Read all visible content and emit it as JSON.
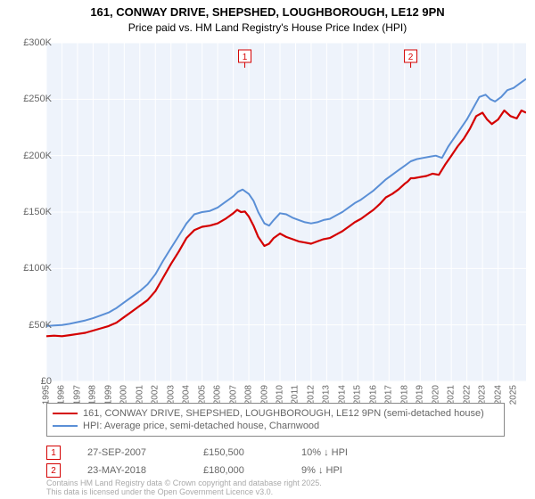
{
  "title": "161, CONWAY DRIVE, SHEPSHED, LOUGHBOROUGH, LE12 9PN",
  "subtitle": "Price paid vs. HM Land Registry's House Price Index (HPI)",
  "chart": {
    "type": "line",
    "background_color": "#eef3fb",
    "grid_color": "#ffffff",
    "axis_color": "#666666",
    "xlim": [
      1995,
      2025.8
    ],
    "ylim": [
      0,
      300000
    ],
    "yticks": [
      0,
      50000,
      100000,
      150000,
      200000,
      250000,
      300000
    ],
    "ytick_labels": [
      "£0",
      "£50K",
      "£100K",
      "£150K",
      "£200K",
      "£250K",
      "£300K"
    ],
    "xticks": [
      1995,
      1996,
      1997,
      1998,
      1999,
      2000,
      2001,
      2002,
      2003,
      2004,
      2005,
      2006,
      2007,
      2008,
      2009,
      2010,
      2011,
      2012,
      2013,
      2014,
      2015,
      2016,
      2017,
      2018,
      2019,
      2020,
      2021,
      2022,
      2023,
      2024,
      2025
    ],
    "series": [
      {
        "name": "price_paid",
        "color": "#d40000",
        "width": 2.2,
        "points": [
          [
            1995,
            40000
          ],
          [
            1995.5,
            40500
          ],
          [
            1996,
            40000
          ],
          [
            1996.5,
            41000
          ],
          [
            1997,
            42000
          ],
          [
            1997.5,
            43000
          ],
          [
            1998,
            45000
          ],
          [
            1998.5,
            47000
          ],
          [
            1999,
            49000
          ],
          [
            1999.5,
            52000
          ],
          [
            2000,
            57000
          ],
          [
            2000.5,
            62000
          ],
          [
            2001,
            67000
          ],
          [
            2001.5,
            72000
          ],
          [
            2002,
            80000
          ],
          [
            2002.5,
            92000
          ],
          [
            2003,
            104000
          ],
          [
            2003.5,
            115000
          ],
          [
            2004,
            127000
          ],
          [
            2004.5,
            134000
          ],
          [
            2005,
            137000
          ],
          [
            2005.5,
            138000
          ],
          [
            2006,
            140000
          ],
          [
            2006.5,
            144000
          ],
          [
            2007,
            149000
          ],
          [
            2007.25,
            152000
          ],
          [
            2007.5,
            150000
          ],
          [
            2007.75,
            150500
          ],
          [
            2008,
            146000
          ],
          [
            2008.3,
            138000
          ],
          [
            2008.6,
            128000
          ],
          [
            2009,
            120000
          ],
          [
            2009.3,
            122000
          ],
          [
            2009.6,
            127000
          ],
          [
            2010,
            131000
          ],
          [
            2010.4,
            128000
          ],
          [
            2010.8,
            126000
          ],
          [
            2011.2,
            124000
          ],
          [
            2011.6,
            123000
          ],
          [
            2012,
            122000
          ],
          [
            2012.4,
            124000
          ],
          [
            2012.8,
            126000
          ],
          [
            2013.2,
            127000
          ],
          [
            2013.6,
            130000
          ],
          [
            2014,
            133000
          ],
          [
            2014.4,
            137000
          ],
          [
            2014.8,
            141000
          ],
          [
            2015.2,
            144000
          ],
          [
            2015.6,
            148000
          ],
          [
            2016,
            152000
          ],
          [
            2016.4,
            157000
          ],
          [
            2016.8,
            163000
          ],
          [
            2017.2,
            166000
          ],
          [
            2017.6,
            170000
          ],
          [
            2018,
            175000
          ],
          [
            2018.2,
            177000
          ],
          [
            2018.4,
            180000
          ],
          [
            2018.6,
            180000
          ],
          [
            2019,
            181000
          ],
          [
            2019.4,
            182000
          ],
          [
            2019.8,
            184000
          ],
          [
            2020.2,
            183000
          ],
          [
            2020.6,
            192000
          ],
          [
            2021,
            200000
          ],
          [
            2021.4,
            208000
          ],
          [
            2021.8,
            215000
          ],
          [
            2022.2,
            224000
          ],
          [
            2022.6,
            235000
          ],
          [
            2023,
            238000
          ],
          [
            2023.3,
            232000
          ],
          [
            2023.6,
            228000
          ],
          [
            2024,
            232000
          ],
          [
            2024.4,
            240000
          ],
          [
            2024.8,
            235000
          ],
          [
            2025.2,
            233000
          ],
          [
            2025.5,
            240000
          ],
          [
            2025.8,
            238000
          ]
        ]
      },
      {
        "name": "hpi",
        "color": "#5a8fd6",
        "width": 2,
        "points": [
          [
            1995,
            49000
          ],
          [
            1995.5,
            49500
          ],
          [
            1996,
            50000
          ],
          [
            1996.5,
            51000
          ],
          [
            1997,
            52500
          ],
          [
            1997.5,
            54000
          ],
          [
            1998,
            56000
          ],
          [
            1998.5,
            58500
          ],
          [
            1999,
            61000
          ],
          [
            1999.5,
            65000
          ],
          [
            2000,
            70000
          ],
          [
            2000.5,
            75000
          ],
          [
            2001,
            80000
          ],
          [
            2001.5,
            86000
          ],
          [
            2002,
            95000
          ],
          [
            2002.5,
            107000
          ],
          [
            2003,
            118000
          ],
          [
            2003.5,
            129000
          ],
          [
            2004,
            140000
          ],
          [
            2004.5,
            148000
          ],
          [
            2005,
            150000
          ],
          [
            2005.5,
            151000
          ],
          [
            2006,
            154000
          ],
          [
            2006.5,
            159000
          ],
          [
            2007,
            164000
          ],
          [
            2007.3,
            168000
          ],
          [
            2007.6,
            170000
          ],
          [
            2008,
            166000
          ],
          [
            2008.3,
            160000
          ],
          [
            2008.6,
            150000
          ],
          [
            2009,
            140000
          ],
          [
            2009.3,
            138000
          ],
          [
            2009.6,
            143000
          ],
          [
            2010,
            149000
          ],
          [
            2010.4,
            148000
          ],
          [
            2010.8,
            145000
          ],
          [
            2011.2,
            143000
          ],
          [
            2011.6,
            141000
          ],
          [
            2012,
            140000
          ],
          [
            2012.4,
            141000
          ],
          [
            2012.8,
            143000
          ],
          [
            2013.2,
            144000
          ],
          [
            2013.6,
            147000
          ],
          [
            2014,
            150000
          ],
          [
            2014.4,
            154000
          ],
          [
            2014.8,
            158000
          ],
          [
            2015.2,
            161000
          ],
          [
            2015.6,
            165000
          ],
          [
            2016,
            169000
          ],
          [
            2016.4,
            174000
          ],
          [
            2016.8,
            179000
          ],
          [
            2017.2,
            183000
          ],
          [
            2017.6,
            187000
          ],
          [
            2018,
            191000
          ],
          [
            2018.4,
            195000
          ],
          [
            2018.8,
            197000
          ],
          [
            2019.2,
            198000
          ],
          [
            2019.6,
            199000
          ],
          [
            2020,
            200000
          ],
          [
            2020.4,
            198000
          ],
          [
            2020.8,
            208000
          ],
          [
            2021.2,
            216000
          ],
          [
            2021.6,
            224000
          ],
          [
            2022,
            232000
          ],
          [
            2022.4,
            242000
          ],
          [
            2022.8,
            252000
          ],
          [
            2023.2,
            254000
          ],
          [
            2023.5,
            250000
          ],
          [
            2023.8,
            248000
          ],
          [
            2024.2,
            252000
          ],
          [
            2024.6,
            258000
          ],
          [
            2025,
            260000
          ],
          [
            2025.4,
            264000
          ],
          [
            2025.8,
            268000
          ]
        ]
      }
    ],
    "markers": [
      {
        "id": "1",
        "x": 2007.74,
        "color": "#d40000"
      },
      {
        "id": "2",
        "x": 2018.39,
        "color": "#d40000"
      }
    ]
  },
  "legend": {
    "items": [
      {
        "color": "#d40000",
        "label": "161, CONWAY DRIVE, SHEPSHED, LOUGHBOROUGH, LE12 9PN (semi-detached house)"
      },
      {
        "color": "#5a8fd6",
        "label": "HPI: Average price, semi-detached house, Charnwood"
      }
    ]
  },
  "marker_table": [
    {
      "id": "1",
      "color": "#d40000",
      "date": "27-SEP-2007",
      "price": "£150,500",
      "diff": "10% ↓ HPI"
    },
    {
      "id": "2",
      "color": "#d40000",
      "date": "23-MAY-2018",
      "price": "£180,000",
      "diff": "9% ↓ HPI"
    }
  ],
  "footer_line1": "Contains HM Land Registry data © Crown copyright and database right 2025.",
  "footer_line2": "This data is licensed under the Open Government Licence v3.0."
}
